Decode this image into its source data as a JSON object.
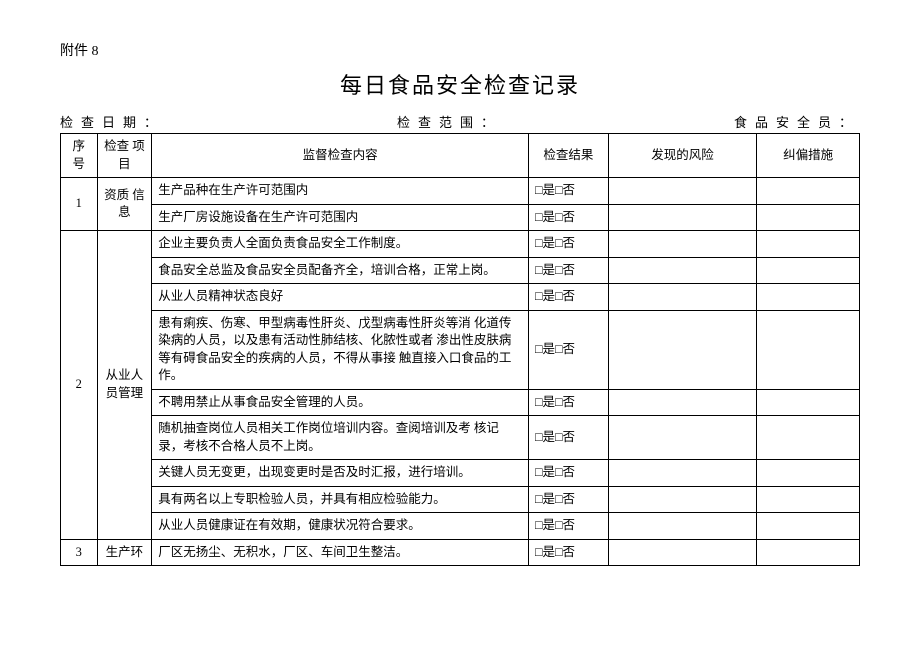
{
  "attachment_label": "附件 8",
  "title": "每日食品安全检查记录",
  "meta": {
    "date_label": "检查日期：",
    "scope_label": "检查范围：",
    "officer_label": "食品安全员："
  },
  "headers": {
    "seq": "序号",
    "category": "检查 项目",
    "content": "监督检查内容",
    "result": "检查结果",
    "risk": "发现的风险",
    "measure": "纠偏措施"
  },
  "result_option": "□是□否",
  "groups": [
    {
      "seq": "1",
      "category": "资质 信息",
      "rows": [
        "生产品种在生产许可范围内",
        "生产厂房设施设备在生产许可范围内"
      ]
    },
    {
      "seq": "2",
      "category": "从业人员管理",
      "rows": [
        "企业主要负责人全面负责食品安全工作制度。",
        "食品安全总监及食品安全员配备齐全，培训合格，正常上岗。",
        "从业人员精神状态良好",
        "患有痢疾、伤寒、甲型病毒性肝炎、戊型病毒性肝炎等消 化道传染病的人员，以及患有活动性肺结核、化脓性或者 渗出性皮肤病等有碍食品安全的疾病的人员，不得从事接 触直接入口食品的工作。",
        "不聘用禁止从事食品安全管理的人员。",
        "随机抽查岗位人员相关工作岗位培训内容。查阅培训及考 核记录，考核不合格人员不上岗。",
        "关键人员无变更，出现变更时是否及时汇报，进行培训。",
        "具有两名以上专职检验人员，并具有相应检验能力。",
        "从业人员健康证在有效期，健康状况符合要求。"
      ]
    },
    {
      "seq": "3",
      "category": "生产环",
      "rows": [
        "厂区无扬尘、无积水，厂区、车间卫生整洁。"
      ]
    }
  ]
}
